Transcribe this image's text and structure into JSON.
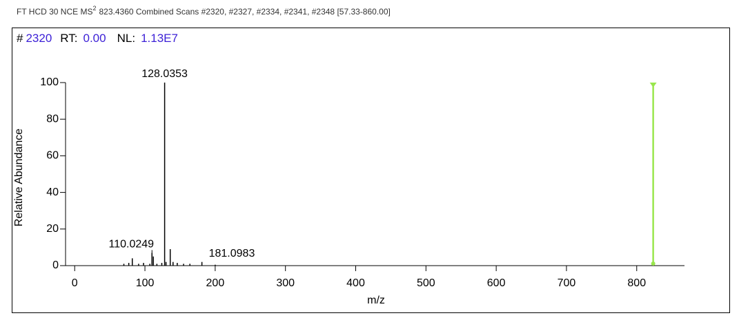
{
  "header": {
    "prefix": "FT HCD 30 NCE MS",
    "superscript": "2",
    "rest": "823.4360 Combined Scans #2320, #2327, #2334, #2341, #2348 [57.33-860.00]"
  },
  "info": {
    "scan_label": "#",
    "scan": "2320",
    "rt_label": "RT:",
    "rt": "0.00",
    "nl_label": "NL:",
    "nl": "1.13E7"
  },
  "chart_data": {
    "type": "stem",
    "x_label": "m/z",
    "y_label": "Relative Abundance",
    "x": [
      70,
      77,
      82,
      91,
      98,
      107,
      110.0249,
      112,
      117,
      124,
      128.0353,
      130,
      136,
      140,
      146,
      155,
      164,
      181.0983,
      200
    ],
    "values": [
      1,
      1.5,
      4,
      1,
      1.5,
      1,
      7,
      5,
      1,
      1.5,
      100,
      2,
      9,
      2,
      1.5,
      1,
      1,
      2,
      0.5
    ],
    "color": "#000000",
    "annotations": [
      {
        "x": 128.0353,
        "y": 100
      },
      {
        "x": 110.0249,
        "y": 7
      },
      {
        "x": 181.0983,
        "y": 2
      }
    ],
    "precursor": {
      "x": 823.436,
      "y": 100,
      "color": "#99e64d"
    },
    "xlim": [
      -13,
      868
    ],
    "xticks": [
      0,
      100,
      200,
      300,
      400,
      500,
      600,
      700,
      800
    ],
    "ylim": [
      0,
      100
    ],
    "yticks": [
      0,
      20,
      40,
      60,
      80,
      100
    ]
  }
}
